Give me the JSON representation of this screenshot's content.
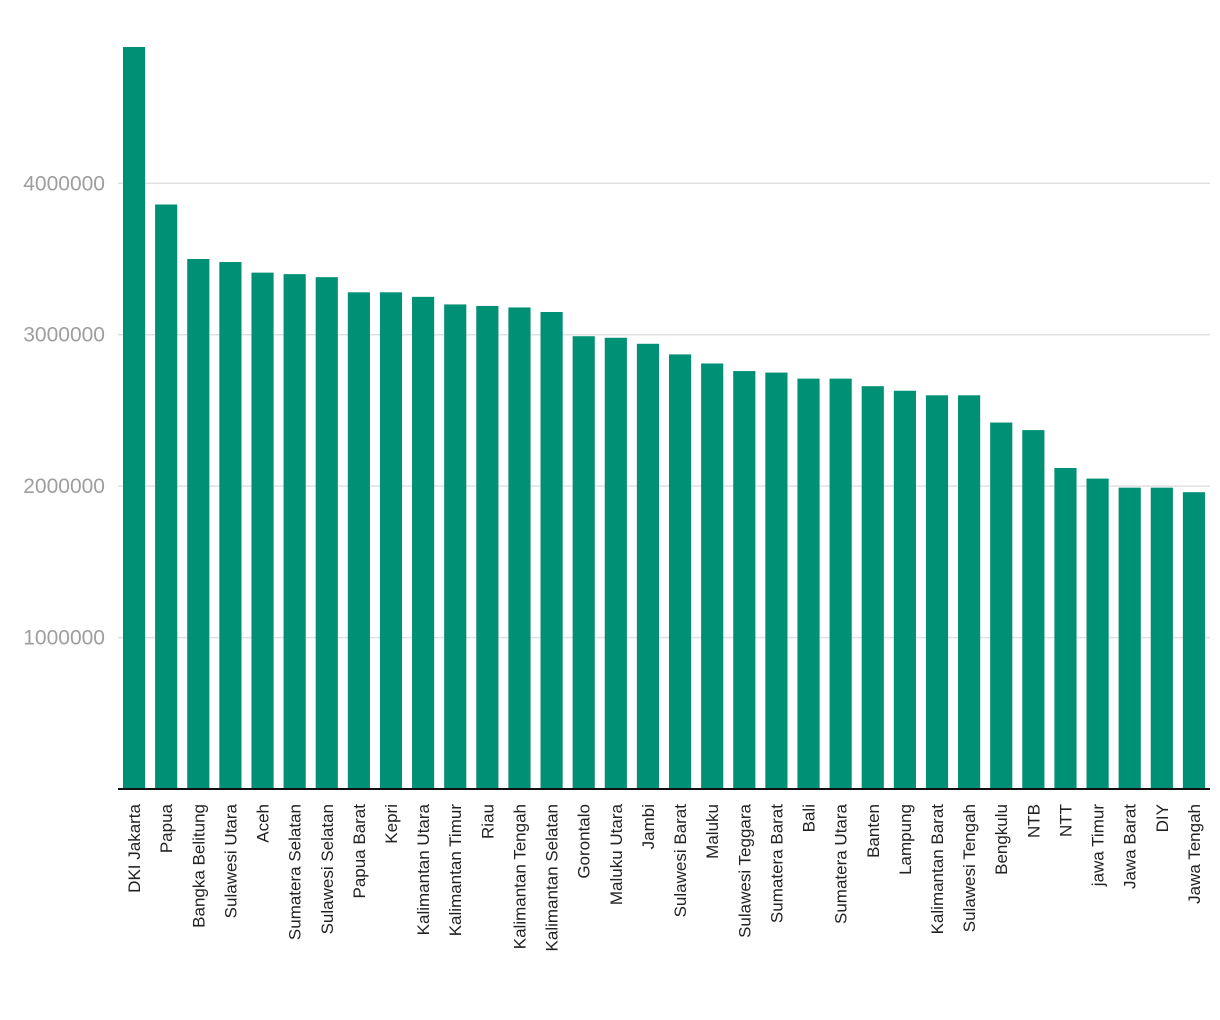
{
  "chart_data": {
    "type": "bar",
    "title": "",
    "xlabel": "",
    "ylabel": "",
    "ylim": [
      0,
      4900000
    ],
    "yticks": [
      1000000,
      2000000,
      3000000,
      4000000
    ],
    "grid": true,
    "legend": "none",
    "bar_color": "#009075",
    "categories": [
      "DKI Jakarta",
      "Papua",
      "Bangka Belitung",
      "Sulawesi Utara",
      "Aceh",
      "Sumatera Selatan",
      "Sulawesi Selatan",
      "Papua Barat",
      "Kepri",
      "Kalimantan Utara",
      "Kalimantan Timur",
      "Riau",
      "Kalimantan Tengah",
      "Kalimantan Selatan",
      "Gorontalo",
      "Maluku Utara",
      "Jambi",
      "Sulawesi Barat",
      "Maluku",
      "Sulawesi Teggara",
      "Sumatera Barat",
      "Bali",
      "Sumatera Utara",
      "Banten",
      "Lampung",
      "Kalimantan Barat",
      "Sulawesi Tengah",
      "Bengkulu",
      "NTB",
      "NTT",
      "jawa Timur",
      "Jawa Barat",
      "DIY",
      "Jawa Tengah"
    ],
    "values": [
      4900000,
      3860000,
      3500000,
      3480000,
      3410000,
      3400000,
      3380000,
      3280000,
      3280000,
      3250000,
      3200000,
      3190000,
      3180000,
      3150000,
      2990000,
      2980000,
      2940000,
      2870000,
      2810000,
      2760000,
      2750000,
      2710000,
      2710000,
      2660000,
      2630000,
      2600000,
      2600000,
      2420000,
      2370000,
      2120000,
      2050000,
      1990000,
      1990000,
      1960000
    ]
  }
}
